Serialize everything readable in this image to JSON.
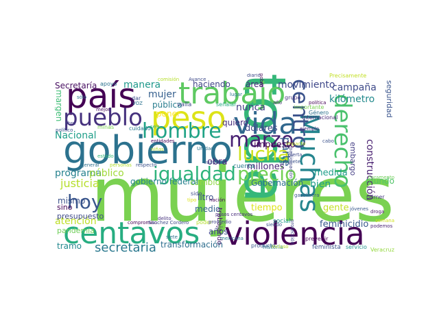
{
  "words": [
    {
      "text": "mujeres",
      "color": "#7ad151"
    },
    {
      "text": "gobierno",
      "color": "#2c728e"
    },
    {
      "text": "toda",
      "color": "#35b779"
    },
    {
      "text": "país",
      "color": "#440154"
    },
    {
      "text": "trabajo",
      "color": "#5ec962"
    },
    {
      "text": "violencia",
      "color": "#440154"
    },
    {
      "text": "centavos",
      "color": "#27ad81"
    },
    {
      "text": "vida",
      "color": "#31688e"
    },
    {
      "text": "peso",
      "color": "#dde318"
    },
    {
      "text": "igualdad",
      "color": "#2fb47c"
    },
    {
      "text": "precio",
      "color": "#73d056"
    },
    {
      "text": "hombre",
      "color": "#20a386"
    },
    {
      "text": "pueblo",
      "color": "#46327e"
    },
    {
      "text": "marzo",
      "color": "#482173"
    },
    {
      "text": "lucha",
      "color": "#cde11d"
    },
    {
      "text": "Muchas",
      "color": "#25858e"
    },
    {
      "text": "centro",
      "color": "#3b528b"
    },
    {
      "text": "derecho",
      "color": "#4ac16d"
    },
    {
      "text": "hoy",
      "color": "#39568c"
    },
    {
      "text": "secretaria",
      "color": "#2a788e"
    },
    {
      "text": "justicia",
      "color": "#b5de2b"
    },
    {
      "text": "Nacional",
      "color": "#1f9e89"
    },
    {
      "text": "atención",
      "color": "#bddf26"
    },
    {
      "text": "tramo",
      "color": "#23888e"
    },
    {
      "text": "transformación",
      "color": "#2e6e8e"
    },
    {
      "text": "campaña",
      "color": "#3e4a89"
    },
    {
      "text": "manera",
      "color": "#1f988b"
    },
    {
      "text": "mujer",
      "color": "#355f8d"
    },
    {
      "text": "kilómetro",
      "color": "#238a8d"
    },
    {
      "text": "nunca",
      "color": "#433e85"
    },
    {
      "text": "movimiento",
      "color": "#3f4889"
    },
    {
      "text": "haciendo",
      "color": "#414487"
    },
    {
      "text": "área",
      "color": "#472a7a"
    },
    {
      "text": "programa",
      "color": "#26828e"
    },
    {
      "text": "público",
      "color": "#a0da39"
    },
    {
      "text": "mismo",
      "color": "#3b528b"
    },
    {
      "text": "construcción",
      "color": "#481f70"
    },
    {
      "text": "parte",
      "color": "#355f8d"
    },
    {
      "text": "bien",
      "color": "#1fa088"
    },
    {
      "text": "medida",
      "color": "#1f9e89"
    },
    {
      "text": "obra",
      "color": "#482677"
    },
    {
      "text": "millones",
      "color": "#482475"
    },
    {
      "text": "Gobernación",
      "color": "#2d708e"
    },
    {
      "text": "feminicidio",
      "color": "#38588c"
    },
    {
      "text": "gente",
      "color": "#c2df23"
    },
    {
      "text": "tiempo",
      "color": "#dde318"
    },
    {
      "text": "años",
      "color": "#3e4989"
    },
    {
      "text": "margen",
      "color": "#3dbc74"
    },
    {
      "text": "pública",
      "color": "#287d8e"
    },
    {
      "text": "Secretaría",
      "color": "#470e61"
    },
    {
      "text": "embargo",
      "color": "#433d84"
    },
    {
      "text": "dólares",
      "color": "#3f4788"
    },
    {
      "text": "impuesto",
      "color": "#440154"
    },
    {
      "text": "quiero",
      "color": "#472d7b"
    },
    {
      "text": "poner",
      "color": "#fde725"
    },
    {
      "text": "cambio",
      "color": "#8fd744"
    },
    {
      "text": "mundo",
      "color": "#52c569"
    },
    {
      "text": "gobierno federal",
      "color": "#26828e"
    },
    {
      "text": "litro",
      "color": "#3b528b"
    },
    {
      "text": "medio",
      "color": "#33638d"
    },
    {
      "text": "seguridad",
      "color": "#3a548c"
    },
    {
      "text": "sino",
      "color": "#440154"
    },
    {
      "text": "presupuesto",
      "color": "#3e4a89"
    },
    {
      "text": "pandemia",
      "color": "#6ece58"
    },
    {
      "text": "apoyo",
      "color": "#2c728e"
    },
    {
      "text": "valla",
      "color": "#3e4a89"
    },
    {
      "text": "señalar",
      "color": "#25ab82"
    },
    {
      "text": "cuenta",
      "color": "#287c8e"
    },
    {
      "text": "trabajando",
      "color": "#481a6c"
    },
    {
      "text": "producto",
      "color": "#39568c"
    },
    {
      "text": "historia",
      "color": "#2a788e"
    },
    {
      "text": "feminista",
      "color": "#3a538b"
    },
    {
      "text": "servicio",
      "color": "#21918c"
    },
    {
      "text": "Veracruz",
      "color": "#95d840"
    },
    {
      "text": "social",
      "color": "#1f9a8a"
    },
    {
      "text": "semana",
      "color": "#d0e11c"
    },
    {
      "text": "prevenir",
      "color": "#440154"
    },
    {
      "text": "primer",
      "color": "#453882"
    },
    {
      "text": "jóvenes",
      "color": "#38588c"
    },
    {
      "text": "droga",
      "color": "#481769"
    },
    {
      "text": "grupo",
      "color": "#46307e"
    },
    {
      "text": "ejemplo",
      "color": "#472c7a"
    },
    {
      "text": "general",
      "color": "#2d708e"
    },
    {
      "text": "personas",
      "color": "#b0dd2f"
    },
    {
      "text": "respecto",
      "color": "#3b528b"
    },
    {
      "text": "entidades",
      "color": "#460a5d"
    },
    {
      "text": "cuidado",
      "color": "#2a788e"
    },
    {
      "text": "libre",
      "color": "#433e85"
    },
    {
      "text": "político",
      "color": "#3b528b"
    },
    {
      "text": "mejor",
      "color": "#46085c"
    },
    {
      "text": "seis",
      "color": "#2fb47c"
    },
    {
      "text": "minas",
      "color": "#7ad151"
    },
    {
      "text": "Unidad",
      "color": "#2c728e"
    },
    {
      "text": "cuatro",
      "color": "#3b528b"
    },
    {
      "text": "delito",
      "color": "#46327e"
    },
    {
      "text": "compromiso",
      "color": "#440154"
    },
    {
      "text": "Sánchez Cordero",
      "color": "#3e4a89"
    },
    {
      "text": "poder",
      "color": "#b5de2b"
    },
    {
      "text": "promedio",
      "color": "#414487"
    },
    {
      "text": "pesos centavos",
      "color": "#472d7b"
    },
    {
      "text": "mexicana",
      "color": "#2a788e"
    },
    {
      "text": "gabinete",
      "color": "#3b528b"
    },
    {
      "text": "alerta",
      "color": "#3e4a89"
    },
    {
      "text": "gasolinera",
      "color": "#39568c"
    },
    {
      "text": "protección",
      "color": "#3f4788"
    },
    {
      "text": "podemos",
      "color": "#481f70"
    },
    {
      "text": "Internacional",
      "color": "#482677"
    },
    {
      "text": "Género",
      "color": "#2d708e"
    },
    {
      "text": "política",
      "color": "#440154"
    },
    {
      "text": "importante",
      "color": "#7ad151"
    },
    {
      "text": "comisión",
      "color": "#b5de2b"
    },
    {
      "text": "Avance",
      "color": "#3e4a89"
    },
    {
      "text": "sólo",
      "color": "#2c728e"
    },
    {
      "text": "cabo",
      "color": "#3b528b"
    },
    {
      "text": "impacto",
      "color": "#c2df23"
    },
    {
      "text": "dar",
      "color": "#3b528b"
    },
    {
      "text": "VOZ",
      "color": "#2c728e"
    },
    {
      "text": "sido",
      "color": "#3e4a89"
    },
    {
      "text": "tipo",
      "color": "#dde318"
    },
    {
      "text": "incluso",
      "color": "#b5de2b"
    },
    {
      "text": "Precisamente",
      "color": "#c2df23"
    },
    {
      "text": "participación",
      "color": "#3f4788"
    },
    {
      "text": "pobre",
      "color": "#440154"
    },
    {
      "text": "año",
      "color": "#472d7b"
    },
    {
      "text": "paramento",
      "color": "#6ece58"
    },
    {
      "text": "siendo",
      "color": "#3b528b"
    },
    {
      "text": "siete",
      "color": "#2c728e"
    },
    {
      "text": "estado",
      "color": "#35b779"
    },
    {
      "text": "diario",
      "color": "#3e4a89"
    },
    {
      "text": "nación",
      "color": "#440154"
    },
    {
      "text": "niñas",
      "color": "#b5de2b"
    },
    {
      "text": "lugar",
      "color": "#2a788e"
    }
  ]
}
